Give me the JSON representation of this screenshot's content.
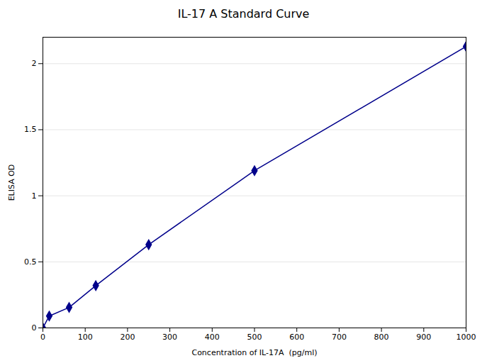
{
  "chart_data": {
    "type": "line",
    "title": "IL-17 A  Standard  Curve",
    "xlabel": "Concentration of IL-17A  (pg/ml)",
    "ylabel": "ELISA OD",
    "x": [
      0,
      15,
      62,
      125,
      250,
      500,
      1000
    ],
    "values": [
      0.0,
      0.09,
      0.155,
      0.32,
      0.63,
      1.19,
      2.13
    ],
    "color": "#00008B",
    "marker": "diamond",
    "xlim": [
      0,
      1000
    ],
    "ylim": [
      0,
      2.2
    ],
    "xticks": [
      0,
      100,
      200,
      300,
      400,
      500,
      600,
      700,
      800,
      900,
      1000
    ],
    "yticks": [
      0,
      0.5,
      1,
      1.5,
      2
    ],
    "grid": true
  }
}
